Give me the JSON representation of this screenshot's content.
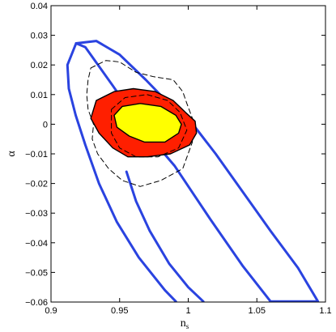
{
  "chart_data": {
    "type": "contour",
    "title": "",
    "xlabel": "n",
    "xlabel_subscript": "s",
    "ylabel": "α",
    "xlim": [
      0.9,
      1.1
    ],
    "ylim": [
      -0.06,
      0.04
    ],
    "xticks": [
      0.9,
      0.95,
      1,
      1.05,
      1.1
    ],
    "xtick_labels": [
      "0.9",
      "0.95",
      "1",
      "1.05",
      "1.1"
    ],
    "yticks": [
      0.04,
      0.03,
      0.02,
      0.01,
      0,
      -0.01,
      -0.02,
      -0.03,
      -0.04,
      -0.05,
      -0.06
    ],
    "ytick_labels": [
      "0.04",
      "0.03",
      "0.02",
      "0.01",
      "0",
      "−0.01",
      "−0.02",
      "−0.03",
      "−0.04",
      "−0.05",
      "−0.06"
    ],
    "grid": false,
    "colors": {
      "blue": "#2a43e0",
      "red": "#ff1f00",
      "yellow": "#ffff00",
      "black": "#000000"
    },
    "contours": [
      {
        "id": "blue-outer",
        "fill": "none",
        "stroke": "#2a43e0",
        "dashed": false,
        "width": 3,
        "points": [
          [
            0.9183,
            0.0273
          ],
          [
            0.933,
            0.0281
          ],
          [
            0.95,
            0.0235
          ],
          [
            0.969,
            0.015
          ],
          [
            0.99,
            0.005
          ],
          [
            1.005,
            -0.001
          ],
          [
            1.02,
            -0.01
          ],
          [
            1.04,
            -0.023
          ],
          [
            1.06,
            -0.036
          ],
          [
            1.08,
            -0.0485
          ],
          [
            1.0945,
            -0.0598
          ],
          [
            1.06,
            -0.0598
          ],
          [
            1.04,
            -0.048
          ],
          [
            1.016,
            -0.032
          ],
          [
            0.99,
            -0.014
          ],
          [
            0.966,
            -0.001
          ],
          [
            0.945,
            0.013
          ],
          [
            0.925,
            0.026
          ],
          [
            0.9183,
            0.0273
          ]
        ]
      },
      {
        "id": "blue-left",
        "fill": "none",
        "stroke": "#2a43e0",
        "dashed": false,
        "width": 3,
        "points": [
          [
            0.9183,
            0.0273
          ],
          [
            0.912,
            0.02
          ],
          [
            0.913,
            0.012
          ],
          [
            0.918,
            0.003
          ],
          [
            0.925,
            -0.007
          ],
          [
            0.935,
            -0.02
          ],
          [
            0.948,
            -0.033
          ],
          [
            0.964,
            -0.045
          ],
          [
            0.983,
            -0.056
          ],
          [
            0.991,
            -0.0598
          ]
        ]
      },
      {
        "id": "blue-inner-left",
        "fill": "none",
        "stroke": "#2a43e0",
        "dashed": false,
        "width": 3,
        "points": [
          [
            0.955,
            -0.016
          ],
          [
            0.962,
            -0.026
          ],
          [
            0.972,
            -0.036
          ],
          [
            0.986,
            -0.047
          ],
          [
            1.0,
            -0.055
          ],
          [
            1.011,
            -0.0598
          ]
        ]
      },
      {
        "id": "dashed-outer",
        "fill": "none",
        "stroke": "#000000",
        "dashed": true,
        "width": 1,
        "points": [
          [
            0.929,
            0.019
          ],
          [
            0.94,
            0.0215
          ],
          [
            0.95,
            0.021
          ],
          [
            0.962,
            0.0175
          ],
          [
            0.975,
            0.016
          ],
          [
            0.989,
            0.015
          ],
          [
            0.996,
            0.011
          ],
          [
            0.999,
            0.007
          ],
          [
            1.003,
            0.002
          ],
          [
            1.003,
            -0.006
          ],
          [
            0.996,
            -0.015
          ],
          [
            0.98,
            -0.019
          ],
          [
            0.965,
            -0.021
          ],
          [
            0.952,
            -0.019
          ],
          [
            0.942,
            -0.015
          ],
          [
            0.934,
            -0.01
          ],
          [
            0.93,
            -0.005
          ],
          [
            0.931,
            0.0
          ],
          [
            0.927,
            0.005
          ],
          [
            0.926,
            0.01
          ],
          [
            0.927,
            0.015
          ],
          [
            0.929,
            0.019
          ]
        ]
      },
      {
        "id": "red-region",
        "fill": "#ff1f00",
        "stroke": "#000000",
        "dashed": false,
        "width": 1.4,
        "points": [
          [
            0.929,
            0.002
          ],
          [
            0.933,
            0.008
          ],
          [
            0.946,
            0.011
          ],
          [
            0.96,
            0.012
          ],
          [
            0.976,
            0.011
          ],
          [
            0.989,
            0.008
          ],
          [
            0.998,
            0.004
          ],
          [
            1.005,
            0.001
          ],
          [
            1.006,
            -0.003
          ],
          [
            1.001,
            -0.007
          ],
          [
            0.987,
            -0.01
          ],
          [
            0.97,
            -0.011
          ],
          [
            0.956,
            -0.011
          ],
          [
            0.945,
            -0.008
          ],
          [
            0.935,
            -0.003
          ],
          [
            0.929,
            0.002
          ]
        ]
      },
      {
        "id": "dashed-inner",
        "fill": "none",
        "stroke": "#000000",
        "dashed": true,
        "width": 1,
        "points": [
          [
            0.944,
            0.005
          ],
          [
            0.954,
            0.009
          ],
          [
            0.97,
            0.01
          ],
          [
            0.985,
            0.008
          ],
          [
            0.994,
            0.004
          ],
          [
            0.999,
            -0.002
          ],
          [
            0.993,
            -0.008
          ],
          [
            0.978,
            -0.011
          ],
          [
            0.962,
            -0.011
          ],
          [
            0.95,
            -0.008
          ],
          [
            0.944,
            -0.003
          ],
          [
            0.944,
            0.005
          ]
        ]
      },
      {
        "id": "yellow-region",
        "fill": "#ffff00",
        "stroke": "#000000",
        "dashed": false,
        "width": 1.4,
        "points": [
          [
            0.946,
            0.003
          ],
          [
            0.952,
            0.006
          ],
          [
            0.965,
            0.007
          ],
          [
            0.98,
            0.006
          ],
          [
            0.991,
            0.003
          ],
          [
            0.995,
            0.0
          ],
          [
            0.993,
            -0.003
          ],
          [
            0.983,
            -0.006
          ],
          [
            0.968,
            -0.006
          ],
          [
            0.957,
            -0.004
          ],
          [
            0.948,
            -0.001
          ],
          [
            0.946,
            0.003
          ]
        ]
      }
    ]
  }
}
